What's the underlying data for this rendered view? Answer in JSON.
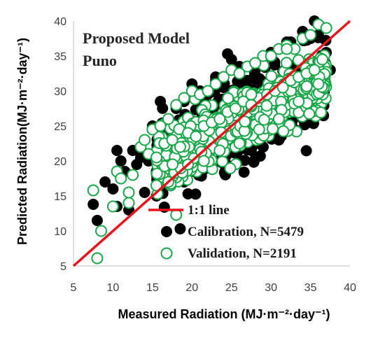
{
  "chart_data": {
    "type": "scatter",
    "title_lines": [
      "Proposed Model",
      "Puno"
    ],
    "xlabel": "Measured Radiation (MJ·m⁻²·day⁻¹)",
    "ylabel": "Predicted Radiation(MJ·m⁻²·day⁻¹)",
    "xlim": [
      5,
      40
    ],
    "ylim": [
      5,
      40
    ],
    "xticks": [
      5,
      10,
      15,
      20,
      25,
      30,
      35,
      40
    ],
    "yticks": [
      5,
      10,
      15,
      20,
      25,
      30,
      35,
      40
    ],
    "grid": false,
    "legend_position": "bottom-right",
    "reference_line": {
      "name": "1:1 line",
      "color": "#e8141c",
      "points": [
        [
          5,
          5
        ],
        [
          40,
          40
        ]
      ]
    },
    "series": [
      {
        "name": "Calibration, N=5479",
        "marker": "filled-circle",
        "color": "#000000",
        "n": 5479,
        "x": [
          7.5,
          8.0,
          9.0,
          10.0,
          10.5,
          11.0,
          11.5,
          12.0,
          12.5,
          13.0,
          13.5,
          14.0,
          14.5,
          15.0,
          15.5,
          16.0,
          16.5,
          17.0,
          17.5,
          18.0,
          18.5,
          19.0,
          19.5,
          20.0,
          20.5,
          21.0,
          21.5,
          22.0,
          22.5,
          23.0,
          23.5,
          24.0,
          24.5,
          25.0,
          25.5,
          26.0,
          26.5,
          27.0,
          27.5,
          28.0,
          28.5,
          29.0,
          29.5,
          30.0,
          30.5,
          31.0,
          31.5,
          32.0,
          32.5,
          33.0,
          33.5,
          34.0,
          34.5,
          35.0,
          35.5,
          36.0,
          36.5,
          37.0,
          37.5,
          18.5,
          19.5,
          21.0,
          22.5,
          24.0,
          24.5,
          26.0,
          27.5,
          29.0,
          31.0,
          33.0,
          12.5,
          14.0,
          10.5,
          16.0,
          20.0,
          23.0,
          25.5,
          28.0,
          30.5,
          34.0,
          36.0,
          35.5,
          32.5,
          13.5,
          15.5,
          17.5,
          19.0
        ],
        "y": [
          13.8,
          11.5,
          17.0,
          16.0,
          21.5,
          20.0,
          18.5,
          13.0,
          21.5,
          19.5,
          22.0,
          23.0,
          20.0,
          25.0,
          18.5,
          24.5,
          20.5,
          25.5,
          21.0,
          27.5,
          22.0,
          28.5,
          23.0,
          29.5,
          22.5,
          30.0,
          23.5,
          29.5,
          24.0,
          31.5,
          24.5,
          30.5,
          26.0,
          34.5,
          26.5,
          33.5,
          27.5,
          31.5,
          27.0,
          33.0,
          27.5,
          34.0,
          27.5,
          35.5,
          27.0,
          36.0,
          28.5,
          37.0,
          29.0,
          36.0,
          30.0,
          38.5,
          30.0,
          37.5,
          31.0,
          38.0,
          30.5,
          35.5,
          33.0,
          10.3,
          15.3,
          18.0,
          19.0,
          20.5,
          35.3,
          20.0,
          21.5,
          22.0,
          23.0,
          24.5,
          18.0,
          15.5,
          13.5,
          28.5,
          31.0,
          32.0,
          22.0,
          24.5,
          25.5,
          27.0,
          29.5,
          40.0,
          37.0,
          20.5,
          15.0,
          19.5,
          17.0
        ]
      },
      {
        "name": "Validation, N=2191",
        "marker": "open-circle",
        "color": "#1aa74a",
        "n": 2191,
        "x": [
          7.5,
          8.0,
          8.5,
          10.0,
          10.5,
          11.0,
          12.0,
          12.5,
          13.5,
          14.0,
          14.5,
          15.0,
          15.5,
          16.0,
          16.5,
          17.0,
          17.5,
          18.0,
          18.5,
          19.0,
          19.5,
          20.0,
          20.5,
          21.0,
          21.5,
          22.0,
          22.5,
          23.0,
          23.5,
          24.0,
          24.5,
          25.0,
          25.5,
          26.0,
          26.5,
          27.0,
          27.5,
          28.0,
          28.5,
          29.0,
          29.5,
          30.0,
          30.5,
          31.0,
          31.5,
          32.0,
          32.5,
          33.0,
          33.5,
          34.0,
          34.5,
          35.0,
          35.5,
          36.0,
          36.5,
          37.0,
          18.0,
          19.5,
          21.5,
          23.5,
          26.0,
          28.5,
          31.0,
          33.5,
          36.0,
          15.5,
          17.0,
          12.0,
          27.5,
          32.0
        ],
        "y": [
          15.8,
          6.1,
          10.0,
          13.5,
          18.5,
          17.5,
          15.5,
          18.0,
          22.0,
          23.0,
          21.0,
          24.5,
          20.5,
          25.0,
          22.5,
          26.0,
          23.0,
          28.0,
          22.0,
          29.0,
          24.0,
          30.0,
          23.5,
          29.5,
          25.0,
          30.0,
          25.5,
          31.0,
          26.0,
          32.0,
          27.0,
          33.0,
          27.5,
          32.5,
          28.5,
          33.5,
          28.0,
          34.0,
          29.0,
          35.0,
          29.5,
          35.0,
          30.0,
          36.0,
          30.5,
          36.5,
          31.5,
          36.0,
          32.0,
          37.5,
          32.5,
          38.0,
          33.0,
          39.5,
          34.5,
          39.0,
          12.3,
          19.5,
          20.0,
          21.5,
          22.5,
          24.5,
          26.0,
          28.5,
          31.0,
          16.5,
          17.0,
          14.0,
          29.5,
          36.0
        ]
      }
    ]
  }
}
